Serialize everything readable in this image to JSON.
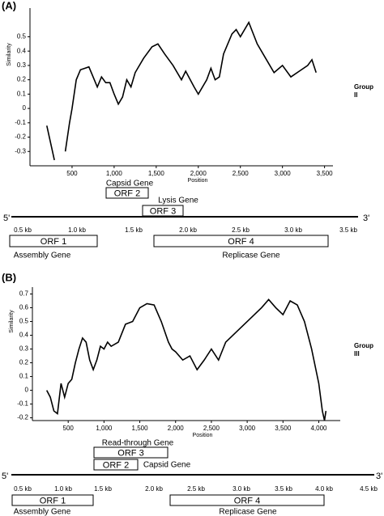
{
  "chart_data": [
    {
      "type": "line",
      "panel_label": "(A)",
      "group_label": "Group II",
      "y_label": "Similarity",
      "x_label": "Position",
      "xlim": [
        0,
        3600
      ],
      "ylim": [
        -0.4,
        0.7
      ],
      "xticks": [
        500,
        {
          "value": 1000,
          "label": "1,000"
        },
        {
          "value": 1500,
          "label": "1,500"
        },
        {
          "value": 2000,
          "label": "2,000"
        },
        {
          "value": 2500,
          "label": "2,500"
        },
        {
          "value": 3000,
          "label": "3,000"
        },
        {
          "value": 3500,
          "label": "3,500"
        }
      ],
      "yticks": [
        -0.3,
        -0.2,
        -0.1,
        0,
        0.1,
        0.2,
        0.3,
        0.4,
        0.5
      ],
      "x": [
        200,
        230,
        260,
        290,
        370,
        420,
        470,
        500,
        550,
        600,
        650,
        700,
        750,
        800,
        850,
        900,
        950,
        1000,
        1050,
        1100,
        1150,
        1200,
        1250,
        1350,
        1450,
        1520,
        1600,
        1700,
        1800,
        1850,
        1950,
        2000,
        2100,
        2150,
        2200,
        2250,
        2300,
        2400,
        2450,
        2500,
        2600,
        2700,
        2800,
        2900,
        3000,
        3100,
        3200,
        3300,
        3350,
        3400
      ],
      "series": [
        {
          "color": "#000000",
          "values": [
            -0.12,
            -0.2,
            -0.28,
            -0.36,
            null,
            -0.3,
            -0.1,
            0.0,
            0.2,
            0.27,
            0.28,
            0.29,
            0.22,
            0.15,
            0.22,
            0.18,
            0.18,
            0.1,
            0.03,
            0.08,
            0.2,
            0.15,
            0.25,
            0.35,
            0.43,
            0.45,
            0.38,
            0.3,
            0.2,
            0.26,
            0.15,
            0.1,
            0.2,
            0.28,
            0.2,
            0.22,
            0.38,
            0.52,
            0.55,
            0.5,
            0.6,
            0.45,
            0.35,
            0.25,
            0.3,
            0.22,
            0.26,
            0.3,
            0.34,
            0.25
          ]
        }
      ],
      "genome": {
        "five_prime": "5'",
        "three_prime": "3'",
        "scale": [
          "0.5 kb",
          "1.0 kb",
          "1.5 kb",
          "2.0 kb",
          "2.5 kb",
          "3.0 kb",
          "3.5 kb"
        ],
        "orfs": [
          {
            "label": "ORF 2",
            "gene": "Capsid Gene"
          },
          {
            "label": "ORF 3",
            "gene": "Lysis Gene"
          },
          {
            "label": "ORF 1",
            "gene": "Assembly Gene"
          },
          {
            "label": "ORF 4",
            "gene": "Replicase Gene"
          }
        ]
      }
    },
    {
      "type": "line",
      "panel_label": "(B)",
      "group_label": "Group III",
      "y_label": "Similarity",
      "x_label": "Position",
      "xlim": [
        0,
        4300
      ],
      "ylim": [
        -0.22,
        0.75
      ],
      "xticks": [
        500,
        {
          "value": 1000,
          "label": "1,000"
        },
        {
          "value": 1500,
          "label": "1,500"
        },
        {
          "value": 2000,
          "label": "2,000"
        },
        {
          "value": 2500,
          "label": "2,500"
        },
        {
          "value": 3000,
          "label": "3,000"
        },
        {
          "value": 3500,
          "label": "3,500"
        },
        {
          "value": 4000,
          "label": "4,000"
        }
      ],
      "yticks": [
        -0.2,
        -0.1,
        0,
        0.1,
        0.2,
        0.3,
        0.4,
        0.5,
        0.6,
        0.7
      ],
      "x": [
        200,
        250,
        300,
        350,
        400,
        450,
        500,
        550,
        600,
        650,
        700,
        750,
        800,
        850,
        900,
        950,
        1000,
        1050,
        1100,
        1200,
        1300,
        1400,
        1500,
        1600,
        1700,
        1800,
        1900,
        1950,
        2000,
        2100,
        2200,
        2300,
        2400,
        2500,
        2600,
        2700,
        2800,
        2900,
        3000,
        3100,
        3200,
        3300,
        3400,
        3500,
        3600,
        3700,
        3800,
        3900,
        4000,
        4050,
        4080,
        4100
      ],
      "series": [
        {
          "color": "#000000",
          "values": [
            0,
            -0.05,
            -0.15,
            -0.17,
            0.05,
            -0.05,
            0.05,
            0.08,
            0.2,
            0.3,
            0.38,
            0.35,
            0.22,
            0.15,
            0.22,
            0.32,
            0.3,
            0.35,
            0.32,
            0.35,
            0.48,
            0.5,
            0.6,
            0.63,
            0.62,
            0.5,
            0.35,
            0.3,
            0.28,
            0.22,
            0.25,
            0.15,
            0.22,
            0.3,
            0.22,
            0.35,
            0.4,
            0.45,
            0.5,
            0.55,
            0.6,
            0.66,
            0.6,
            0.55,
            0.65,
            0.62,
            0.5,
            0.3,
            0.05,
            -0.15,
            -0.22,
            -0.15
          ]
        }
      ],
      "genome": {
        "five_prime": "5'",
        "three_prime": "3'",
        "scale": [
          "0.5 kb",
          "1.0 kb",
          "1.5 kb",
          "2.0 kb",
          "2.5 kb",
          "3.0 kb",
          "3.5 kb",
          "4.0 kb",
          "4.5 kb"
        ],
        "orfs": [
          {
            "label": "ORF 3",
            "gene": "Read-through Gene"
          },
          {
            "label": "ORF 2",
            "gene": "Capsid Gene"
          },
          {
            "label": "ORF 1",
            "gene": "Assembly Gene"
          },
          {
            "label": "ORF 4",
            "gene": "Replicase Gene"
          }
        ]
      }
    }
  ]
}
